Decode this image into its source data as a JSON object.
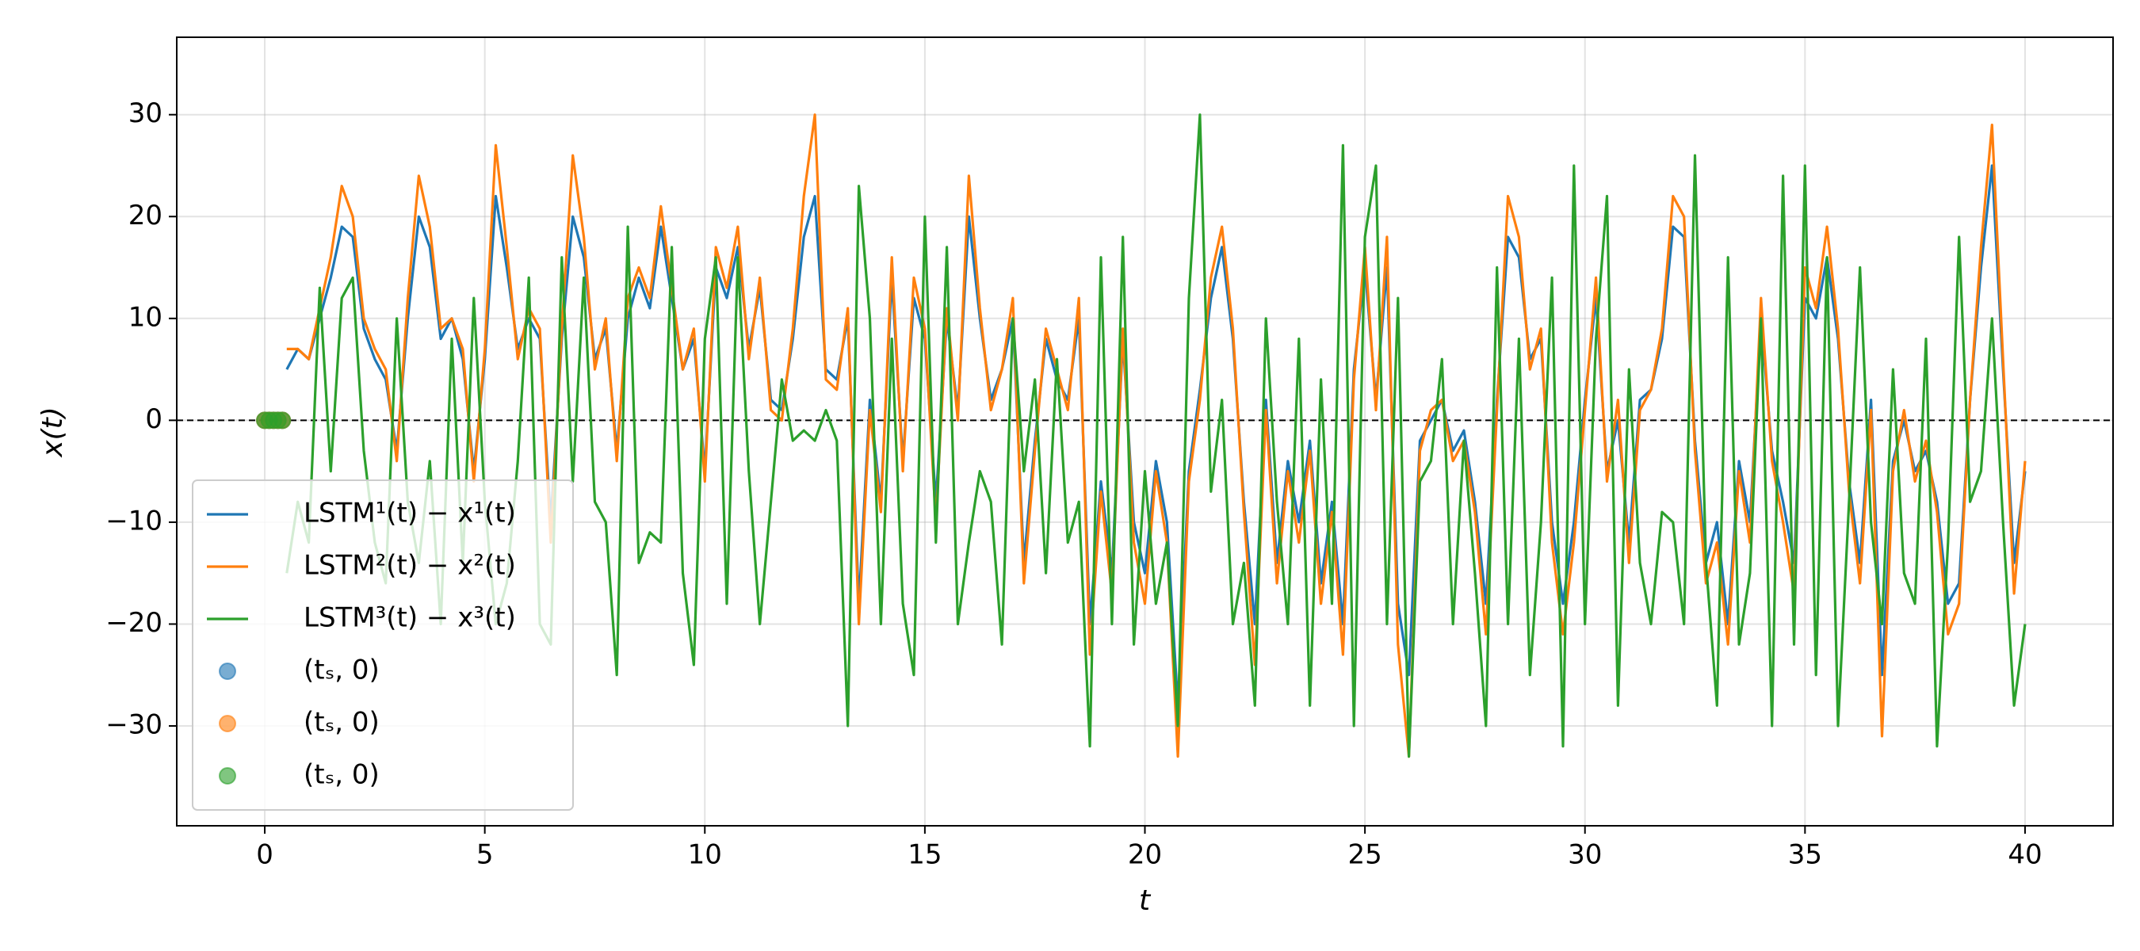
{
  "chart_data": {
    "type": "line",
    "xlabel": "t",
    "ylabel": "x(t)",
    "xlim": [
      -2,
      42
    ],
    "ylim": [
      -39.8,
      37.6
    ],
    "xticks": [
      0,
      5,
      10,
      15,
      20,
      25,
      30,
      35,
      40
    ],
    "yticks": [
      {
        "value": -30,
        "label": "−30"
      },
      {
        "value": -20,
        "label": "−20"
      },
      {
        "value": -10,
        "label": "−10"
      },
      0,
      10,
      20,
      30
    ],
    "grid": true,
    "legend": "lower left",
    "hlines": [
      0
    ],
    "x": [
      0.5,
      0.75,
      1,
      1.25,
      1.5,
      1.75,
      2,
      2.25,
      2.5,
      2.75,
      3,
      3.25,
      3.5,
      3.75,
      4,
      4.25,
      4.5,
      4.75,
      5,
      5.25,
      5.5,
      5.75,
      6,
      6.25,
      6.5,
      6.75,
      7,
      7.25,
      7.5,
      7.75,
      8,
      8.25,
      8.5,
      8.75,
      9,
      9.25,
      9.5,
      9.75,
      10,
      10.25,
      10.5,
      10.75,
      11,
      11.25,
      11.5,
      11.75,
      12,
      12.25,
      12.5,
      12.75,
      13,
      13.25,
      13.5,
      13.75,
      14,
      14.25,
      14.5,
      14.75,
      15,
      15.25,
      15.5,
      15.75,
      16,
      16.25,
      16.5,
      16.75,
      17,
      17.25,
      17.5,
      17.75,
      18,
      18.25,
      18.5,
      18.75,
      19,
      19.25,
      19.5,
      19.75,
      20,
      20.25,
      20.5,
      20.75,
      21,
      21.25,
      21.5,
      21.75,
      22,
      22.25,
      22.5,
      22.75,
      23,
      23.25,
      23.5,
      23.75,
      24,
      24.25,
      24.5,
      24.75,
      25,
      25.25,
      25.5,
      25.75,
      26,
      26.25,
      26.5,
      26.75,
      27,
      27.25,
      27.5,
      27.75,
      28,
      28.25,
      28.5,
      28.75,
      29,
      29.25,
      29.5,
      29.75,
      30,
      30.25,
      30.5,
      30.75,
      31,
      31.25,
      31.5,
      31.75,
      32,
      32.25,
      32.5,
      32.75,
      33,
      33.25,
      33.5,
      33.75,
      34,
      34.25,
      34.5,
      34.75,
      35,
      35.25,
      35.5,
      35.75,
      36,
      36.25,
      36.5,
      36.75,
      37,
      37.25,
      37.5,
      37.75,
      38,
      38.25,
      38.5,
      38.75,
      39,
      39.25,
      39.5,
      39.75,
      40
    ],
    "series": [
      {
        "name": "LSTM¹(t) − x¹(t)",
        "type": "line",
        "color": "#1f77b4",
        "values": [
          5,
          7,
          6,
          10,
          14,
          19,
          18,
          9,
          6,
          4,
          -3,
          10,
          20,
          17,
          8,
          10,
          6,
          -5,
          6,
          22,
          15,
          7,
          10,
          8,
          -10,
          8,
          20,
          16,
          6,
          9,
          -3,
          10,
          14,
          11,
          19,
          12,
          5,
          8,
          -5,
          15,
          12,
          17,
          7,
          13,
          2,
          1,
          8,
          18,
          22,
          5,
          4,
          10,
          -18,
          2,
          -8,
          14,
          -4,
          12,
          8,
          -8,
          10,
          1,
          20,
          10,
          2,
          5,
          10,
          -14,
          -2,
          8,
          4,
          2,
          10,
          -20,
          -6,
          -15,
          8,
          -10,
          -15,
          -4,
          -10,
          -28,
          -5,
          3,
          12,
          17,
          8,
          -8,
          -20,
          2,
          -14,
          -4,
          -10,
          -2,
          -16,
          -8,
          -20,
          5,
          15,
          2,
          15,
          -18,
          -25,
          -2,
          0,
          2,
          -3,
          -1,
          -8,
          -18,
          2,
          18,
          16,
          6,
          8,
          -10,
          -18,
          -10,
          2,
          12,
          -5,
          0,
          -12,
          2,
          3,
          8,
          19,
          18,
          -2,
          -14,
          -10,
          -20,
          -4,
          -10,
          10,
          -3,
          -8,
          -14,
          12,
          10,
          16,
          8,
          -6,
          -14,
          2,
          -25,
          -4,
          0,
          -5,
          -3,
          -8,
          -18,
          -16,
          2,
          15,
          25,
          5,
          -14,
          -5
        ]
      },
      {
        "name": "LSTM²(t) − x²(t)",
        "type": "line",
        "color": "#ff7f0e",
        "values": [
          7,
          7,
          6,
          11,
          16,
          23,
          20,
          10,
          7,
          5,
          -4,
          12,
          24,
          19,
          9,
          10,
          7,
          -6,
          7,
          27,
          17,
          6,
          11,
          9,
          -12,
          9,
          26,
          18,
          5,
          10,
          -4,
          12,
          15,
          12,
          21,
          13,
          5,
          9,
          -6,
          17,
          13,
          19,
          6,
          14,
          1,
          0,
          9,
          22,
          30,
          4,
          3,
          11,
          -20,
          1,
          -9,
          16,
          -5,
          14,
          9,
          -10,
          11,
          0,
          24,
          11,
          1,
          5,
          12,
          -16,
          -3,
          9,
          5,
          1,
          12,
          -23,
          -7,
          -17,
          9,
          -12,
          -18,
          -5,
          -12,
          -33,
          -6,
          2,
          14,
          19,
          9,
          -9,
          -24,
          1,
          -16,
          -5,
          -12,
          -3,
          -18,
          -9,
          -23,
          4,
          17,
          1,
          18,
          -22,
          -33,
          -3,
          1,
          2,
          -4,
          -2,
          -9,
          -21,
          1,
          22,
          18,
          5,
          9,
          -12,
          -21,
          -12,
          1,
          14,
          -6,
          2,
          -14,
          1,
          3,
          9,
          22,
          20,
          -3,
          -16,
          -12,
          -22,
          -5,
          -12,
          12,
          -4,
          -10,
          -17,
          15,
          11,
          19,
          9,
          -7,
          -16,
          1,
          -31,
          -5,
          1,
          -6,
          -2,
          -9,
          -21,
          -18,
          2,
          17,
          29,
          6,
          -17,
          -4
        ]
      },
      {
        "name": "LSTM³(t) − x³(t)",
        "type": "line",
        "color": "#2ca02c",
        "values": [
          -15,
          -8,
          -12,
          13,
          -5,
          12,
          14,
          -3,
          -12,
          -16,
          10,
          -8,
          -14,
          -4,
          -20,
          8,
          -14,
          12,
          -8,
          -20,
          -16,
          -4,
          14,
          -20,
          -22,
          16,
          -6,
          14,
          -8,
          -10,
          -25,
          19,
          -14,
          -11,
          -12,
          17,
          -15,
          -24,
          8,
          16,
          -18,
          16,
          -5,
          -20,
          -8,
          4,
          -2,
          -1,
          -2,
          1,
          -2,
          -30,
          23,
          10,
          -20,
          8,
          -18,
          -25,
          20,
          -12,
          17,
          -20,
          -12,
          -5,
          -8,
          -22,
          10,
          -5,
          4,
          -15,
          6,
          -12,
          -8,
          -32,
          16,
          -20,
          18,
          -22,
          -5,
          -18,
          -12,
          -30,
          12,
          30,
          -7,
          2,
          -20,
          -14,
          -28,
          10,
          -8,
          -20,
          8,
          -28,
          4,
          -18,
          27,
          -30,
          18,
          25,
          -20,
          12,
          -33,
          -6,
          -4,
          6,
          -20,
          -2,
          -15,
          -30,
          15,
          -20,
          8,
          -25,
          -10,
          14,
          -32,
          25,
          -20,
          8,
          22,
          -28,
          5,
          -14,
          -20,
          -9,
          -10,
          -20,
          26,
          -14,
          -28,
          16,
          -22,
          -15,
          10,
          -30,
          24,
          -22,
          25,
          -25,
          16,
          -30,
          -8,
          15,
          -10,
          -20,
          5,
          -15,
          -18,
          8,
          -32,
          -12,
          18,
          -8,
          -5,
          10,
          -10,
          -28,
          -20
        ]
      },
      {
        "name": "(tₛ, 0)",
        "type": "scatter",
        "color": "#1f77b4",
        "x": [
          0,
          0.1,
          0.2,
          0.3,
          0.4
        ],
        "values": [
          0,
          0,
          0,
          0,
          0
        ]
      },
      {
        "name": "(tₛ, 0)",
        "type": "scatter",
        "color": "#ff7f0e",
        "x": [
          0,
          0.1,
          0.2,
          0.3,
          0.4
        ],
        "values": [
          0,
          0,
          0,
          0,
          0
        ]
      },
      {
        "name": "(tₛ, 0)",
        "type": "scatter",
        "color": "#2ca02c",
        "x": [
          0,
          0.1,
          0.2,
          0.3,
          0.4
        ],
        "values": [
          0,
          0,
          0,
          0,
          0
        ]
      }
    ]
  }
}
